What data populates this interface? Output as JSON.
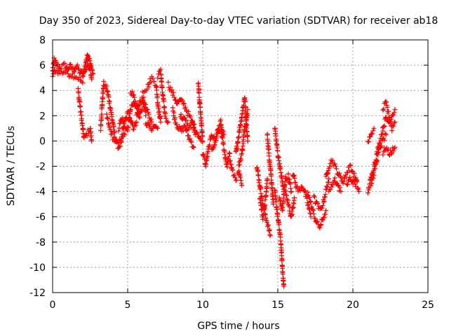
{
  "chart_data": {
    "type": "scatter",
    "title": "Day 350 of 2023, Sidereal Day-to-day VTEC variation (SDTVAR) for receiver ab18",
    "xlabel": "GPS time / hours",
    "ylabel": "SDTVAR / TECUs",
    "xlim": [
      0,
      25
    ],
    "ylim": [
      -12,
      8
    ],
    "xticks": [
      0,
      5,
      10,
      15,
      20,
      25
    ],
    "yticks": [
      -12,
      -10,
      -8,
      -6,
      -4,
      -2,
      0,
      2,
      4,
      6,
      8
    ],
    "xtick_labels": [
      "0",
      "5",
      "10",
      "15",
      "20",
      "25"
    ],
    "ytick_labels": [
      "-12",
      "-10",
      "-8",
      "-6",
      "-4",
      "-2",
      "0",
      "2",
      "4",
      "6",
      "8"
    ],
    "grid": true,
    "marker": "+",
    "marker_color": "#ff0000",
    "series": [
      {
        "name": "SDTVAR",
        "tracks": [
          [
            [
              0.0,
              5.5
            ],
            [
              0.1,
              6.4
            ],
            [
              0.3,
              6.0
            ],
            [
              0.5,
              5.8
            ],
            [
              0.8,
              6.0
            ],
            [
              1.0,
              5.7
            ],
            [
              1.2,
              5.9
            ],
            [
              1.4,
              5.6
            ],
            [
              1.6,
              5.9
            ],
            [
              1.8,
              5.5
            ],
            [
              2.0,
              5.3
            ]
          ],
          [
            [
              0.0,
              5.2
            ],
            [
              0.2,
              5.6
            ],
            [
              0.5,
              5.4
            ],
            [
              0.8,
              5.5
            ],
            [
              1.1,
              5.3
            ],
            [
              1.4,
              5.2
            ],
            [
              1.7,
              5.0
            ],
            [
              2.0,
              4.6
            ]
          ],
          [
            [
              1.7,
              4.0
            ],
            [
              1.8,
              3.0
            ],
            [
              1.9,
              2.0
            ],
            [
              2.0,
              1.0
            ],
            [
              2.1,
              0.2
            ],
            [
              2.3,
              0.6
            ],
            [
              2.5,
              1.0
            ],
            [
              2.6,
              0.0
            ]
          ],
          [
            [
              2.0,
              5.2
            ],
            [
              2.2,
              6.0
            ],
            [
              2.3,
              6.8
            ],
            [
              2.4,
              6.5
            ],
            [
              2.5,
              6.2
            ],
            [
              2.6,
              5.8
            ],
            [
              2.7,
              5.3
            ]
          ],
          [
            [
              2.1,
              5.5
            ],
            [
              2.3,
              5.9
            ],
            [
              2.5,
              5.6
            ],
            [
              2.6,
              4.9
            ]
          ],
          [
            [
              3.2,
              1.0
            ],
            [
              3.3,
              3.0
            ],
            [
              3.4,
              4.5
            ],
            [
              3.6,
              4.2
            ],
            [
              3.8,
              3.0
            ],
            [
              4.0,
              1.5
            ],
            [
              4.2,
              0.0
            ],
            [
              4.4,
              -0.5
            ],
            [
              4.6,
              0.0
            ],
            [
              4.8,
              0.5
            ]
          ],
          [
            [
              3.6,
              2.0
            ],
            [
              3.8,
              1.0
            ],
            [
              4.0,
              0.3
            ],
            [
              4.3,
              -0.3
            ],
            [
              4.6,
              0.2
            ]
          ],
          [
            [
              4.6,
              0.5
            ],
            [
              4.8,
              1.5
            ],
            [
              5.0,
              2.2
            ],
            [
              5.2,
              1.8
            ],
            [
              5.4,
              1.0
            ],
            [
              5.6,
              1.5
            ]
          ],
          [
            [
              4.4,
              1.0
            ],
            [
              4.6,
              1.8
            ],
            [
              4.8,
              1.2
            ],
            [
              5.0,
              0.8
            ]
          ],
          [
            [
              5.0,
              1.0
            ],
            [
              5.2,
              2.5
            ],
            [
              5.4,
              3.0
            ],
            [
              5.6,
              2.5
            ],
            [
              5.8,
              2.0
            ],
            [
              6.0,
              3.0
            ],
            [
              6.2,
              2.0
            ]
          ],
          [
            [
              5.6,
              2.0
            ],
            [
              5.8,
              3.0
            ],
            [
              6.0,
              3.5
            ],
            [
              6.2,
              2.7
            ],
            [
              6.4,
              2.0
            ],
            [
              6.6,
              1.5
            ]
          ],
          [
            [
              5.2,
              4.0
            ],
            [
              5.4,
              3.5
            ],
            [
              5.6,
              3.0
            ],
            [
              5.8,
              2.2
            ]
          ],
          [
            [
              6.0,
              4.0
            ],
            [
              6.3,
              4.2
            ],
            [
              6.6,
              5.0
            ],
            [
              6.9,
              4.5
            ],
            [
              7.0,
              3.0
            ],
            [
              7.2,
              1.5
            ]
          ],
          [
            [
              6.2,
              1.5
            ],
            [
              6.4,
              1.2
            ],
            [
              6.6,
              1.0
            ],
            [
              6.8,
              1.2
            ],
            [
              7.0,
              1.0
            ]
          ],
          [
            [
              7.0,
              5.2
            ],
            [
              7.2,
              5.5
            ],
            [
              7.3,
              4.0
            ],
            [
              7.5,
              2.0
            ],
            [
              7.7,
              1.5
            ]
          ],
          [
            [
              7.7,
              4.5
            ],
            [
              7.9,
              4.0
            ],
            [
              8.1,
              3.5
            ],
            [
              8.3,
              3.0
            ],
            [
              8.5,
              3.2
            ],
            [
              8.7,
              3.0
            ],
            [
              8.9,
              2.5
            ],
            [
              9.1,
              2.0
            ],
            [
              9.3,
              1.5
            ],
            [
              9.5,
              1.0
            ],
            [
              9.7,
              0.5
            ],
            [
              9.9,
              0.0
            ]
          ],
          [
            [
              8.0,
              2.5
            ],
            [
              8.2,
              1.5
            ],
            [
              8.4,
              1.0
            ],
            [
              8.6,
              0.8
            ],
            [
              8.8,
              1.2
            ],
            [
              9.0,
              0.5
            ],
            [
              9.2,
              0.0
            ],
            [
              9.4,
              -0.5
            ]
          ],
          [
            [
              8.5,
              2.0
            ],
            [
              8.7,
              1.8
            ],
            [
              8.9,
              1.5
            ],
            [
              9.1,
              1.0
            ],
            [
              9.3,
              1.5
            ],
            [
              9.5,
              0.5
            ]
          ],
          [
            [
              9.7,
              4.5
            ],
            [
              9.8,
              3.0
            ],
            [
              9.9,
              1.5
            ],
            [
              10.0,
              0.0
            ]
          ],
          [
            [
              10.0,
              -1.0
            ],
            [
              10.2,
              -2.0
            ],
            [
              10.4,
              -0.5
            ],
            [
              10.6,
              0.5
            ],
            [
              10.8,
              0.0
            ],
            [
              11.0,
              0.5
            ],
            [
              11.2,
              1.0
            ],
            [
              11.4,
              -0.5
            ],
            [
              11.6,
              -2.0
            ],
            [
              11.8,
              -1.0
            ]
          ],
          [
            [
              10.6,
              -0.8
            ],
            [
              10.8,
              -0.2
            ],
            [
              11.0,
              0.8
            ],
            [
              11.2,
              1.5
            ],
            [
              11.4,
              0.5
            ]
          ],
          [
            [
              11.8,
              -1.5
            ],
            [
              12.0,
              -2.5
            ],
            [
              12.2,
              -3.0
            ],
            [
              12.4,
              -2.5
            ],
            [
              12.6,
              -3.5
            ]
          ],
          [
            [
              12.2,
              -1.0
            ],
            [
              12.4,
              0.5
            ],
            [
              12.6,
              2.0
            ],
            [
              12.8,
              3.5
            ],
            [
              12.9,
              1.5
            ],
            [
              13.0,
              0.0
            ]
          ],
          [
            [
              12.4,
              -2.0
            ],
            [
              12.6,
              -1.0
            ],
            [
              12.8,
              1.0
            ],
            [
              13.0,
              2.5
            ]
          ],
          [
            [
              13.6,
              -2.0
            ],
            [
              13.8,
              -3.5
            ],
            [
              14.0,
              -5.0
            ],
            [
              14.2,
              -6.0
            ],
            [
              14.4,
              -7.0
            ],
            [
              14.5,
              -7.5
            ]
          ],
          [
            [
              13.8,
              -4.5
            ],
            [
              14.0,
              -6.0
            ],
            [
              14.2,
              -4.5
            ],
            [
              14.3,
              -3.0
            ]
          ],
          [
            [
              14.3,
              0.5
            ],
            [
              14.4,
              -1.0
            ],
            [
              14.5,
              -2.0
            ],
            [
              14.6,
              -3.5
            ],
            [
              14.7,
              -5.0
            ]
          ],
          [
            [
              14.8,
              -4.0
            ],
            [
              15.0,
              -6.0
            ],
            [
              15.2,
              -8.0
            ],
            [
              15.3,
              -10.0
            ],
            [
              15.4,
              -11.5
            ]
          ],
          [
            [
              14.8,
              1.0
            ],
            [
              15.0,
              -1.0
            ],
            [
              15.2,
              -2.5
            ],
            [
              15.4,
              -4.0
            ]
          ],
          [
            [
              15.1,
              -4.5
            ],
            [
              15.3,
              -5.5
            ],
            [
              15.5,
              -3.0
            ],
            [
              15.7,
              -2.8
            ],
            [
              15.9,
              -4.0
            ]
          ],
          [
            [
              15.5,
              -4.0
            ],
            [
              15.7,
              -5.0
            ],
            [
              15.9,
              -6.0
            ],
            [
              16.1,
              -4.5
            ]
          ],
          [
            [
              16.0,
              -2.5
            ],
            [
              16.2,
              -3.5
            ],
            [
              16.4,
              -4.0
            ],
            [
              16.6,
              -3.5
            ],
            [
              16.8,
              -4.0
            ],
            [
              17.0,
              -5.0
            ],
            [
              17.2,
              -6.0
            ]
          ],
          [
            [
              17.0,
              -4.0
            ],
            [
              17.2,
              -5.0
            ],
            [
              17.4,
              -5.8
            ],
            [
              17.6,
              -6.5
            ],
            [
              17.8,
              -6.8
            ],
            [
              18.0,
              -6.2
            ],
            [
              18.2,
              -5.5
            ]
          ],
          [
            [
              17.4,
              -4.5
            ],
            [
              17.6,
              -5.0
            ],
            [
              17.8,
              -5.5
            ],
            [
              18.0,
              -5.0
            ],
            [
              18.2,
              -4.0
            ],
            [
              18.4,
              -3.0
            ]
          ],
          [
            [
              18.2,
              -3.0
            ],
            [
              18.4,
              -2.0
            ],
            [
              18.6,
              -1.5
            ],
            [
              18.8,
              -2.0
            ],
            [
              19.0,
              -2.5
            ],
            [
              19.2,
              -3.0
            ],
            [
              19.4,
              -3.2
            ]
          ],
          [
            [
              18.4,
              -4.0
            ],
            [
              18.6,
              -3.5
            ],
            [
              18.8,
              -3.0
            ],
            [
              19.0,
              -3.5
            ],
            [
              19.2,
              -4.0
            ]
          ],
          [
            [
              19.4,
              -3.0
            ],
            [
              19.6,
              -2.5
            ],
            [
              19.8,
              -2.0
            ],
            [
              20.0,
              -2.5
            ],
            [
              20.2,
              -3.0
            ],
            [
              20.4,
              -4.0
            ]
          ],
          [
            [
              19.6,
              -3.5
            ],
            [
              19.8,
              -3.0
            ],
            [
              20.0,
              -3.2
            ],
            [
              20.2,
              -3.6
            ]
          ],
          [
            [
              21.0,
              -4.0
            ],
            [
              21.2,
              -3.0
            ],
            [
              21.4,
              -2.0
            ],
            [
              21.6,
              -1.0
            ],
            [
              21.8,
              0.0
            ],
            [
              22.0,
              1.0
            ],
            [
              22.2,
              1.8
            ],
            [
              22.4,
              1.5
            ],
            [
              22.6,
              2.0
            ],
            [
              22.8,
              2.5
            ]
          ],
          [
            [
              21.2,
              -3.5
            ],
            [
              21.4,
              -2.5
            ],
            [
              21.6,
              -1.5
            ],
            [
              21.8,
              -0.5
            ],
            [
              22.0,
              0.0
            ],
            [
              22.2,
              0.5
            ]
          ],
          [
            [
              22.0,
              2.5
            ],
            [
              22.2,
              3.0
            ],
            [
              22.4,
              2.0
            ],
            [
              22.6,
              1.0
            ],
            [
              22.8,
              1.5
            ]
          ],
          [
            [
              21.0,
              0.0
            ],
            [
              21.2,
              0.5
            ],
            [
              21.4,
              1.0
            ]
          ],
          [
            [
              22.0,
              -1.0
            ],
            [
              22.2,
              -0.5
            ],
            [
              22.4,
              -1.0
            ],
            [
              22.6,
              -0.8
            ],
            [
              22.8,
              -0.5
            ]
          ]
        ]
      }
    ]
  }
}
